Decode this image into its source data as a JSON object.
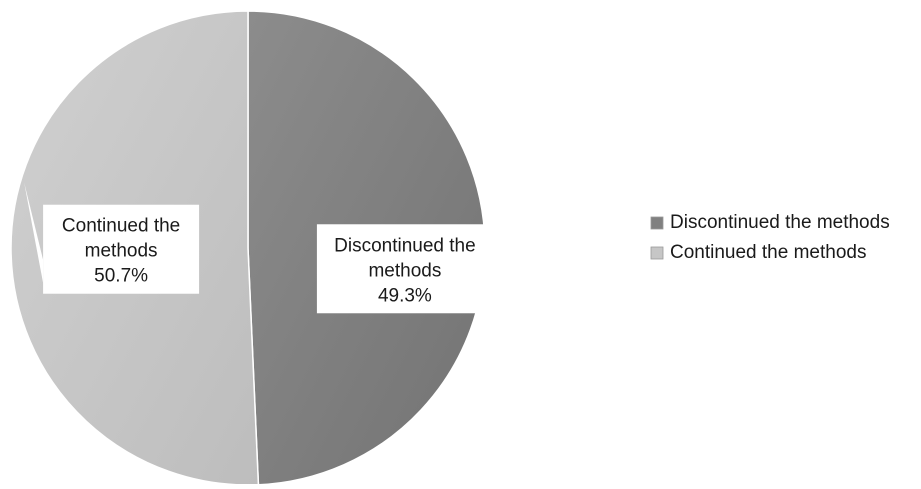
{
  "chart_data": {
    "type": "pie",
    "title": "",
    "slices": [
      {
        "name": "Discontinued the methods",
        "value": 49.3,
        "label_lines": [
          "Discontinued the",
          "methods",
          "49.3%"
        ],
        "color": "#808080"
      },
      {
        "name": "Continued the methods",
        "value": 50.7,
        "label_lines": [
          "Continued the",
          "methods",
          "50.7%"
        ],
        "color": "#c6c6c6"
      }
    ],
    "legend": {
      "position": "right",
      "entries": [
        "Discontinued the methods",
        "Continued the methods"
      ]
    }
  }
}
